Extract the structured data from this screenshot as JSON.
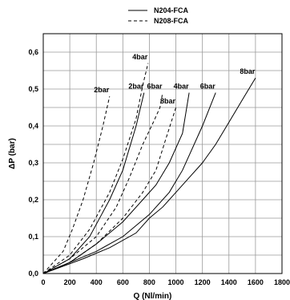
{
  "chart_data": {
    "type": "line",
    "xlabel": "Q (Nl/min)",
    "ylabel": "ΔP  (bar)",
    "xlim": [
      0,
      1800
    ],
    "ylim": [
      0,
      0.65
    ],
    "xticks": [
      0,
      200,
      400,
      600,
      800,
      1000,
      1200,
      1400,
      1600,
      1800
    ],
    "yticks": [
      0.0,
      0.1,
      0.2,
      0.3,
      0.4,
      0.5,
      0.6
    ],
    "ytick_labels": [
      "0,0",
      "0,1",
      "0,2",
      "0,3",
      "0,4",
      "0,5",
      "0,6"
    ],
    "grid": true,
    "legend": [
      {
        "label": "N204-FCA",
        "style": "solid"
      },
      {
        "label": "N208-FCA",
        "style": "dashed"
      }
    ],
    "legend_placement": "top-center",
    "series": [
      {
        "model": "N208-FCA",
        "label": "2bar",
        "style": "dashed",
        "x": [
          0,
          150,
          220,
          300,
          380,
          450,
          500
        ],
        "y": [
          0,
          0.06,
          0.12,
          0.2,
          0.3,
          0.4,
          0.48
        ]
      },
      {
        "model": "N208-FCA",
        "label": "4bar",
        "style": "dashed",
        "x": [
          0,
          200,
          350,
          500,
          600,
          700,
          750,
          790
        ],
        "y": [
          0,
          0.05,
          0.12,
          0.22,
          0.31,
          0.42,
          0.51,
          0.57
        ]
      },
      {
        "model": "N204-FCA",
        "label": "2bar",
        "style": "solid",
        "x": [
          0,
          200,
          350,
          500,
          600,
          700,
          760
        ],
        "y": [
          0,
          0.04,
          0.1,
          0.2,
          0.28,
          0.4,
          0.49
        ]
      },
      {
        "model": "N208-FCA",
        "label": "6bar",
        "style": "dashed",
        "x": [
          0,
          200,
          400,
          550,
          650,
          750,
          830,
          880,
          900
        ],
        "y": [
          0,
          0.04,
          0.1,
          0.18,
          0.26,
          0.35,
          0.41,
          0.45,
          0.49
        ]
      },
      {
        "model": "N208-FCA",
        "label": "8bar",
        "style": "dashed",
        "x": [
          0,
          200,
          400,
          600,
          750,
          850,
          920,
          1000
        ],
        "y": [
          0,
          0.03,
          0.08,
          0.15,
          0.22,
          0.28,
          0.36,
          0.45
        ]
      },
      {
        "model": "N204-FCA",
        "label": "4bar",
        "style": "solid",
        "x": [
          0,
          200,
          400,
          600,
          750,
          850,
          950,
          1050,
          1100
        ],
        "y": [
          0,
          0.03,
          0.08,
          0.14,
          0.2,
          0.24,
          0.3,
          0.38,
          0.49
        ]
      },
      {
        "model": "N204-FCA",
        "label": "6bar",
        "style": "solid",
        "x": [
          0,
          200,
          400,
          600,
          800,
          950,
          1050,
          1100,
          1200,
          1300
        ],
        "y": [
          0,
          0.03,
          0.06,
          0.1,
          0.16,
          0.22,
          0.28,
          0.32,
          0.4,
          0.49
        ]
      },
      {
        "model": "N204-FCA",
        "label": "8bar",
        "style": "solid",
        "x": [
          0,
          300,
          500,
          700,
          800,
          900,
          1000,
          1100,
          1200,
          1300,
          1400,
          1500,
          1600
        ],
        "y": [
          0,
          0.04,
          0.07,
          0.11,
          0.15,
          0.18,
          0.22,
          0.26,
          0.3,
          0.35,
          0.41,
          0.47,
          0.53
        ]
      }
    ]
  }
}
